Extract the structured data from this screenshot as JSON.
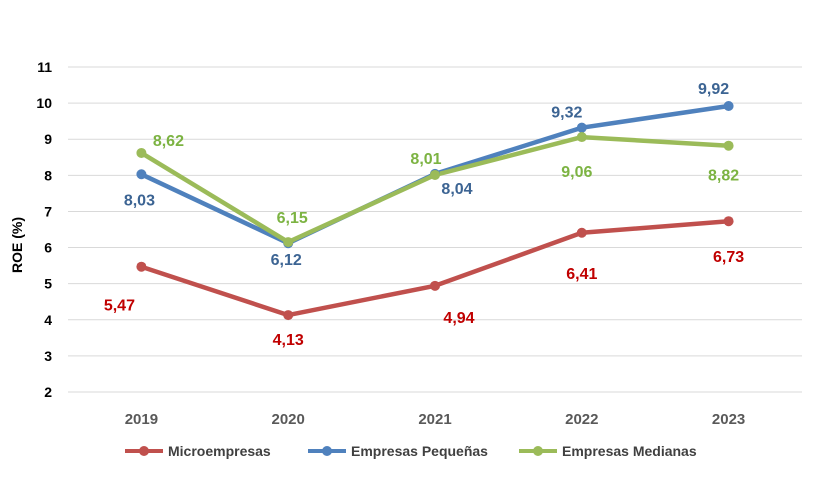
{
  "chart_data": {
    "type": "line",
    "categories": [
      "2019",
      "2020",
      "2021",
      "2022",
      "2023"
    ],
    "ylabel": "ROE (%)",
    "xlabel": "",
    "ylim": [
      2,
      11
    ],
    "yticks": [
      "2",
      "3",
      "4",
      "5",
      "6",
      "7",
      "8",
      "9",
      "10",
      "11"
    ],
    "grid": true,
    "legend_position": "bottom",
    "series": [
      {
        "name": "Microempresas",
        "color": "#c0504d",
        "label_color": "#c00000",
        "values": [
          5.47,
          4.13,
          4.94,
          6.41,
          6.73
        ],
        "labels": [
          "5,47",
          "4,13",
          "4,94",
          "6,41",
          "6,73"
        ]
      },
      {
        "name": "Empresas Pequeñas",
        "color": "#4f81bd",
        "label_color": "#3c6493",
        "values": [
          8.03,
          6.12,
          8.04,
          9.32,
          9.92
        ],
        "labels": [
          "8,03",
          "6,12",
          "8,04",
          "9,32",
          "9,92"
        ]
      },
      {
        "name": "Empresas Medianas",
        "color": "#9bbb59",
        "label_color": "#7cb342",
        "values": [
          8.62,
          6.15,
          8.01,
          9.06,
          8.82
        ],
        "labels": [
          "8,62",
          "6,15",
          "8,01",
          "9,06",
          "8,82"
        ]
      }
    ]
  }
}
